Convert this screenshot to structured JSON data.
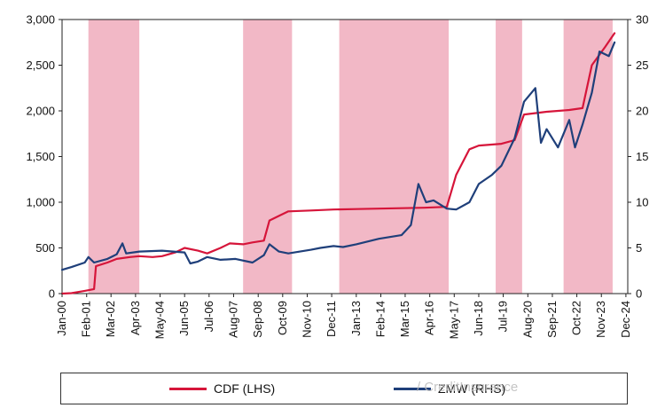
{
  "chart_data": {
    "type": "line",
    "title": "",
    "xlabel": "",
    "ylabel_left": "",
    "ylabel_right": "",
    "x_range": [
      "2000-01-01",
      "2024-12-31"
    ],
    "ylim_left": [
      0,
      3000
    ],
    "ylim_right": [
      0,
      30
    ],
    "y_ticks_left": [
      "0",
      "500",
      "1,000",
      "1,500",
      "2,000",
      "2,500",
      "3,000"
    ],
    "y_ticks_right": [
      "0",
      "5",
      "10",
      "15",
      "20",
      "25",
      "30"
    ],
    "x_tick_labels": [
      {
        "date": "2000-01-01",
        "label": "Jan-00"
      },
      {
        "date": "2001-02-01",
        "label": "Feb-01"
      },
      {
        "date": "2002-03-01",
        "label": "Mar-02"
      },
      {
        "date": "2003-04-01",
        "label": "Apr-03"
      },
      {
        "date": "2004-05-01",
        "label": "May-04"
      },
      {
        "date": "2005-06-01",
        "label": "Jun-05"
      },
      {
        "date": "2006-07-01",
        "label": "Jul-06"
      },
      {
        "date": "2007-08-01",
        "label": "Aug-07"
      },
      {
        "date": "2008-09-01",
        "label": "Sep-08"
      },
      {
        "date": "2009-10-01",
        "label": "Oct-09"
      },
      {
        "date": "2010-11-01",
        "label": "Nov-10"
      },
      {
        "date": "2011-12-01",
        "label": "Dec-11"
      },
      {
        "date": "2013-01-01",
        "label": "Jan-13"
      },
      {
        "date": "2014-02-01",
        "label": "Feb-14"
      },
      {
        "date": "2015-03-01",
        "label": "Mar-15"
      },
      {
        "date": "2016-04-01",
        "label": "Apr-16"
      },
      {
        "date": "2017-05-01",
        "label": "May-17"
      },
      {
        "date": "2018-06-01",
        "label": "Jun-18"
      },
      {
        "date": "2019-07-01",
        "label": "Jul-19"
      },
      {
        "date": "2020-08-01",
        "label": "Aug-20"
      },
      {
        "date": "2021-09-01",
        "label": "Sep-21"
      },
      {
        "date": "2022-10-01",
        "label": "Oct-22"
      },
      {
        "date": "2023-11-01",
        "label": "Nov-23"
      },
      {
        "date": "2024-12-01",
        "label": "Dec-24"
      }
    ],
    "shaded_periods": [
      {
        "start": "2001-03-01",
        "end": "2003-06-01"
      },
      {
        "start": "2008-01-01",
        "end": "2010-03-01"
      },
      {
        "start": "2012-04-01",
        "end": "2017-02-01"
      },
      {
        "start": "2019-03-01",
        "end": "2020-05-01"
      },
      {
        "start": "2022-03-01",
        "end": "2024-05-01"
      }
    ],
    "shading_color": "#f2b8c6",
    "grid": false,
    "legend_position": "bottom",
    "series": [
      {
        "name": "CDF  (LHS)",
        "axis": "left",
        "color": "#d6153a",
        "points": [
          [
            "2000-01-01",
            0
          ],
          [
            "2000-06-01",
            5
          ],
          [
            "2001-01-01",
            30
          ],
          [
            "2001-06-01",
            50
          ],
          [
            "2001-07-01",
            300
          ],
          [
            "2002-01-01",
            340
          ],
          [
            "2002-06-01",
            380
          ],
          [
            "2003-01-01",
            400
          ],
          [
            "2003-06-01",
            410
          ],
          [
            "2004-01-01",
            400
          ],
          [
            "2004-06-01",
            410
          ],
          [
            "2005-01-01",
            450
          ],
          [
            "2005-06-01",
            500
          ],
          [
            "2006-01-01",
            470
          ],
          [
            "2006-06-01",
            440
          ],
          [
            "2007-01-01",
            500
          ],
          [
            "2007-06-01",
            550
          ],
          [
            "2008-01-01",
            540
          ],
          [
            "2008-06-01",
            560
          ],
          [
            "2008-12-01",
            580
          ],
          [
            "2009-03-01",
            800
          ],
          [
            "2009-08-01",
            850
          ],
          [
            "2010-01-01",
            900
          ],
          [
            "2011-01-01",
            910
          ],
          [
            "2012-01-01",
            920
          ],
          [
            "2013-01-01",
            925
          ],
          [
            "2014-01-01",
            930
          ],
          [
            "2015-01-01",
            935
          ],
          [
            "2016-01-01",
            940
          ],
          [
            "2017-01-01",
            950
          ],
          [
            "2017-06-01",
            1300
          ],
          [
            "2018-01-01",
            1580
          ],
          [
            "2018-06-01",
            1620
          ],
          [
            "2019-06-01",
            1640
          ],
          [
            "2020-01-01",
            1680
          ],
          [
            "2020-06-01",
            1960
          ],
          [
            "2021-06-01",
            1990
          ],
          [
            "2022-06-01",
            2010
          ],
          [
            "2023-01-01",
            2030
          ],
          [
            "2023-06-01",
            2500
          ],
          [
            "2024-01-01",
            2700
          ],
          [
            "2024-06-01",
            2850
          ]
        ]
      },
      {
        "name": "ZMW (RHS)",
        "axis": "right",
        "color": "#1f3f7a",
        "points": [
          [
            "2000-01-01",
            2.6
          ],
          [
            "2000-06-01",
            2.9
          ],
          [
            "2001-01-01",
            3.4
          ],
          [
            "2001-03-01",
            4.0
          ],
          [
            "2001-06-01",
            3.4
          ],
          [
            "2002-01-01",
            3.8
          ],
          [
            "2002-06-01",
            4.3
          ],
          [
            "2002-09-01",
            5.5
          ],
          [
            "2002-11-01",
            4.4
          ],
          [
            "2003-06-01",
            4.6
          ],
          [
            "2004-06-01",
            4.7
          ],
          [
            "2005-06-01",
            4.5
          ],
          [
            "2005-09-01",
            3.3
          ],
          [
            "2006-01-01",
            3.5
          ],
          [
            "2006-06-01",
            4.0
          ],
          [
            "2007-01-01",
            3.7
          ],
          [
            "2007-09-01",
            3.8
          ],
          [
            "2008-06-01",
            3.4
          ],
          [
            "2008-12-01",
            4.2
          ],
          [
            "2009-03-01",
            5.4
          ],
          [
            "2009-08-01",
            4.6
          ],
          [
            "2010-01-01",
            4.4
          ],
          [
            "2011-01-01",
            4.8
          ],
          [
            "2011-06-01",
            5.0
          ],
          [
            "2012-01-01",
            5.2
          ],
          [
            "2012-06-01",
            5.1
          ],
          [
            "2013-01-01",
            5.4
          ],
          [
            "2014-01-01",
            6.0
          ],
          [
            "2015-01-01",
            6.4
          ],
          [
            "2015-06-01",
            7.5
          ],
          [
            "2015-10-01",
            12.0
          ],
          [
            "2016-02-01",
            10.0
          ],
          [
            "2016-06-01",
            10.2
          ],
          [
            "2017-01-01",
            9.3
          ],
          [
            "2017-06-01",
            9.2
          ],
          [
            "2018-01-01",
            10.0
          ],
          [
            "2018-06-01",
            12.0
          ],
          [
            "2019-01-01",
            13.0
          ],
          [
            "2019-06-01",
            14.0
          ],
          [
            "2020-01-01",
            17.0
          ],
          [
            "2020-06-01",
            21.0
          ],
          [
            "2020-12-01",
            22.5
          ],
          [
            "2021-03-01",
            16.5
          ],
          [
            "2021-06-01",
            18.0
          ],
          [
            "2021-12-01",
            16.0
          ],
          [
            "2022-06-01",
            19.0
          ],
          [
            "2022-09-01",
            16.0
          ],
          [
            "2023-01-01",
            18.5
          ],
          [
            "2023-06-01",
            22.0
          ],
          [
            "2023-10-01",
            26.5
          ],
          [
            "2024-03-01",
            26.0
          ],
          [
            "2024-06-01",
            27.5
          ]
        ]
      }
    ]
  },
  "legend": {
    "cdf_label": "CDF  (LHS)",
    "zmw_label": "ZMW (RHS)"
  },
  "watermark": "/ CreditInsurance"
}
